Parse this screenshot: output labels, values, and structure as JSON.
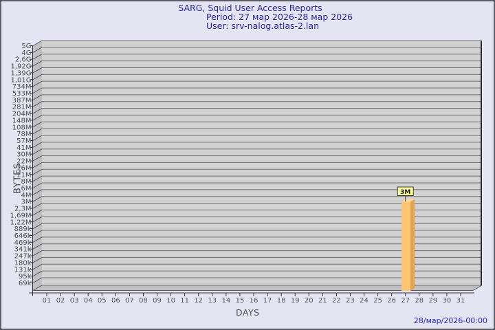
{
  "window": {
    "background": "#E4E4F3",
    "border_color": "#5C5C66"
  },
  "header": {
    "title": "SARG, Squid User Access Reports",
    "period": "Period: 27 мар 2026-28 мар 2026",
    "user": "User: srv-nalog.atlas-2.lan",
    "text_color": "#2626A0"
  },
  "footer": {
    "timestamp": "28/мар/2026-00:00",
    "text_color": "#2626CE"
  },
  "chart_data": {
    "type": "bar",
    "title": "SARG, Squid User Access Reports",
    "subtitle": "Period: 27 мар 2026-28 мар 2026",
    "user": "srv-nalog.atlas-2.lan",
    "xlabel": "DAYS",
    "ylabel": "BYTES",
    "y_scale": "logarithmic-like custom ticks, top to bottom",
    "y_ticks": [
      "5G",
      "4G",
      "2,6G",
      "1,92G",
      "1,39G",
      "1,01G",
      "734M",
      "533M",
      "387M",
      "281M",
      "204M",
      "148M",
      "108M",
      "78M",
      "57M",
      "41M",
      "30M",
      "22M",
      "16M",
      "11M",
      "8M",
      "6M",
      "4M",
      "3M",
      "2,3M",
      "1,69M",
      "1,22M",
      "889k",
      "646k",
      "469k",
      "341k",
      "247k",
      "180k",
      "131k",
      "95k",
      "69k"
    ],
    "categories": [
      "01",
      "02",
      "03",
      "04",
      "05",
      "06",
      "07",
      "08",
      "09",
      "10",
      "11",
      "12",
      "13",
      "14",
      "15",
      "16",
      "17",
      "18",
      "19",
      "20",
      "21",
      "22",
      "23",
      "24",
      "25",
      "26",
      "27",
      "28",
      "29",
      "30",
      "31"
    ],
    "values": [
      0,
      0,
      0,
      0,
      0,
      0,
      0,
      0,
      0,
      0,
      0,
      0,
      0,
      0,
      0,
      0,
      0,
      0,
      0,
      0,
      0,
      0,
      0,
      0,
      0,
      0,
      3000000,
      0,
      0,
      0,
      0
    ],
    "annotations": [
      {
        "day": "27",
        "label": "3M",
        "bytes_approx": 3000000
      }
    ],
    "legend": null,
    "grid": "horizontal",
    "style": {
      "wall": "#D2D2D2",
      "side_wall": "#C0C0C4",
      "grid": "#6E6E6E",
      "diag": "#54545A",
      "axis": "#2E2E33",
      "tick_text": "#4A4A4E",
      "day_text": "#55555A",
      "bar_front": "#FFC572",
      "bar_side": "#E1A34C",
      "bar_top": "#FFDA9A",
      "callout_bg": "#FFFF9C",
      "callout_border": "#3A3A3A",
      "callout_text": "#141414"
    }
  }
}
